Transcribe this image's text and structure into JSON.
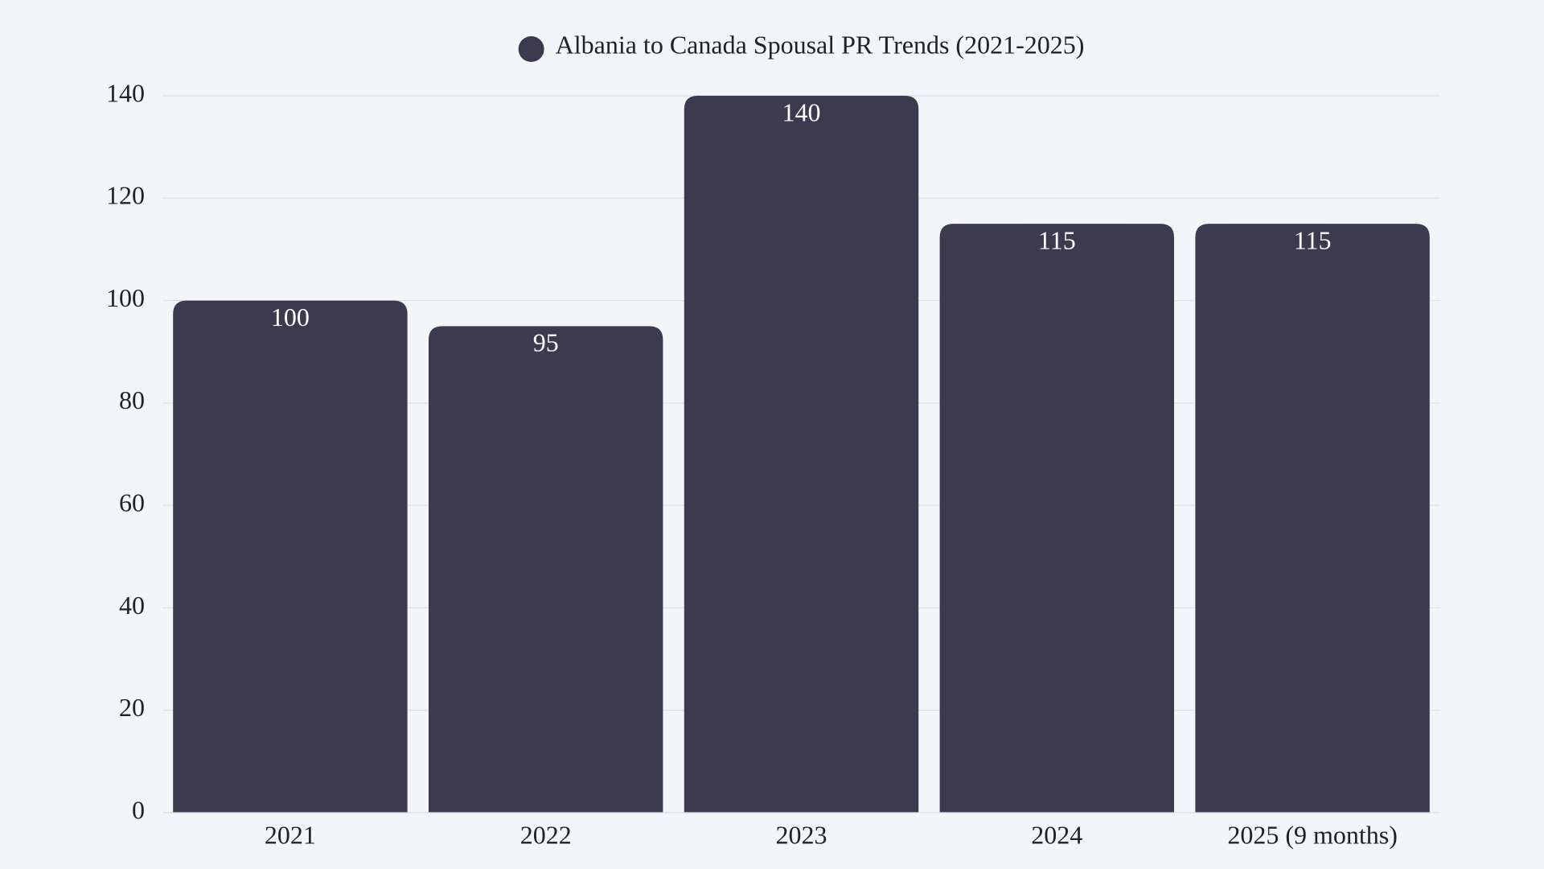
{
  "chart_data": {
    "type": "bar",
    "categories": [
      "2021",
      "2022",
      "2023",
      "2024",
      "2025 (9 months)"
    ],
    "series": [
      {
        "name": "Albania to Canada Spousal PR Trends (2021-2025)",
        "color": "#3d3a50",
        "values": [
          100,
          95,
          140,
          115,
          115
        ]
      }
    ],
    "ylim": [
      0,
      140
    ],
    "yticks": [
      0,
      20,
      40,
      60,
      80,
      100,
      120,
      140
    ],
    "grid": true,
    "legend": "top"
  }
}
